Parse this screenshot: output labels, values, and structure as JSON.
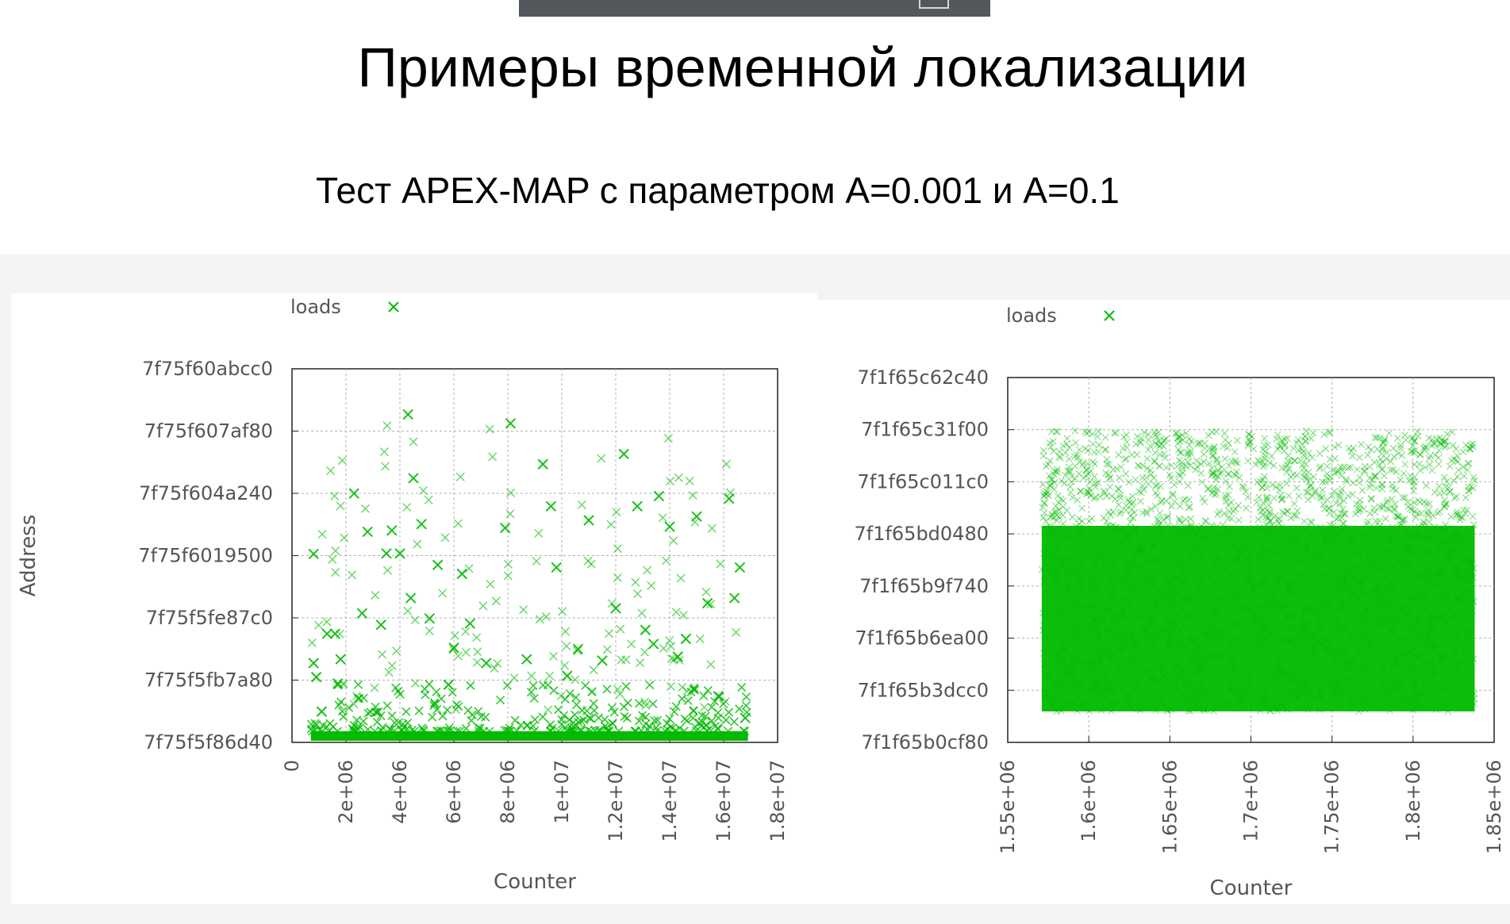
{
  "slide": {
    "title": "Примеры временной локализации",
    "subtitle": "Тест APEX-MAP с параметром A=0.001 и A=0.1"
  },
  "colors": {
    "points": "#00bb00",
    "axis": "#222222",
    "grid": "#b0b0b0",
    "text": "#555555",
    "topbar": "#54575c"
  },
  "chart_data": [
    {
      "type": "scatter",
      "title": "",
      "xlabel": "Counter",
      "ylabel": "Address",
      "legend": {
        "label": "loads",
        "position": "top-left outside"
      },
      "grid": true,
      "x_ticks": [
        "0",
        "2e+06",
        "4e+06",
        "6e+06",
        "8e+06",
        "1e+07",
        "1.2e+07",
        "1.4e+07",
        "1.6e+07",
        "1.8e+07"
      ],
      "y_ticks": [
        "7f75f5f86d40",
        "7f75f5fb7a80",
        "7f75f5fe87c0",
        "7f75f6019500",
        "7f75f604a240",
        "7f75f607af80",
        "7f75f60abcc0"
      ],
      "xlim": [
        0,
        18000000
      ],
      "ylim": [
        "7f75f5f86d40",
        "7f75f60abcc0"
      ],
      "series": [
        {
          "name": "loads",
          "marker": "x",
          "points": [
            [
              800000,
              "7f75f601a9c0"
            ],
            [
              800000,
              "7f75f5fc5000"
            ],
            [
              900000,
              "7f75f5fba000"
            ],
            [
              1100000,
              "7f75f5f9f000"
            ],
            [
              1300000,
              "7f75f5fdc000"
            ],
            [
              1600000,
              "7f75f5fdc000"
            ],
            [
              1800000,
              "7f75f5fc8000"
            ],
            [
              1700000,
              "7f75f5fb5000"
            ],
            [
              2300000,
              "7f75f604a000"
            ],
            [
              2600000,
              "7f75f5fec000"
            ],
            [
              2800000,
              "7f75f602c000"
            ],
            [
              3300000,
              "7f75f5fe3000"
            ],
            [
              3500000,
              "7f75f601b000"
            ],
            [
              3700000,
              "7f75f602d000"
            ],
            [
              4000000,
              "7f75f601b000"
            ],
            [
              4300000,
              "7f75f6088000"
            ],
            [
              4400000,
              "7f75f5ff8000"
            ],
            [
              4500000,
              "7f75f6056000"
            ],
            [
              4800000,
              "7f75f6032000"
            ],
            [
              5100000,
              "7f75f5fe8000"
            ],
            [
              5400000,
              "7f75f6012000"
            ],
            [
              5800000,
              "7f75f5fb4000"
            ],
            [
              6000000,
              "7f75f5fd1000"
            ],
            [
              6300000,
              "7f75f600b000"
            ],
            [
              6600000,
              "7f75f5fe4000"
            ],
            [
              7200000,
              "7f75f5fc5000"
            ],
            [
              7900000,
              "7f75f602f000"
            ],
            [
              8100000,
              "7f75f6081000"
            ],
            [
              8700000,
              "7f75f5fc8000"
            ],
            [
              9300000,
              "7f75f6061000"
            ],
            [
              9600000,
              "7f75f6040000"
            ],
            [
              9800000,
              "7f75f6010000"
            ],
            [
              10200000,
              "7f75f5fbb000"
            ],
            [
              10600000,
              "7f75f5fd0000"
            ],
            [
              11000000,
              "7f75f6035000"
            ],
            [
              11500000,
              "7f75f5fc7000"
            ],
            [
              12000000,
              "7f75f5ff0000"
            ],
            [
              12300000,
              "7f75f6069000"
            ],
            [
              12800000,
              "7f75f6040000"
            ],
            [
              13100000,
              "7f75f5fdf000"
            ],
            [
              13400000,
              "7f75f5fd4000"
            ],
            [
              13600000,
              "7f75f6048000"
            ],
            [
              14000000,
              "7f75f6030000"
            ],
            [
              14300000,
              "7f75f5fca000"
            ],
            [
              14600000,
              "7f75f5fd8000"
            ],
            [
              15000000,
              "7f75f6038000"
            ],
            [
              15400000,
              "7f75f5ff4000"
            ],
            [
              15800000,
              "7f75f5fab000"
            ],
            [
              16200000,
              "7f75f6046000"
            ],
            [
              16600000,
              "7f75f6010000"
            ],
            [
              16400000,
              "7f75f5ff8000"
            ],
            [
              16800000,
              "7f75f5f9a000"
            ]
          ],
          "dense_band": {
            "x_range": [
              700000,
              16900000
            ],
            "y_range": [
              "7f75f5f86d40",
              "7f75f5f95000"
            ]
          }
        }
      ]
    },
    {
      "type": "scatter",
      "title": "",
      "xlabel": "Counter",
      "ylabel": "",
      "legend": {
        "label": "loads",
        "position": "top-left outside"
      },
      "grid": true,
      "x_ticks": [
        "1.55e+06",
        "1.6e+06",
        "1.65e+06",
        "1.7e+06",
        "1.75e+06",
        "1.8e+06",
        "1.85e+06"
      ],
      "y_ticks": [
        "7f1f65b0cf80",
        "7f1f65b3dcc0",
        "7f1f65b6ea00",
        "7f1f65b9f740",
        "7f1f65bd0480",
        "7f1f65c011c0",
        "7f1f65c31f00",
        "7f1f65c62c40"
      ],
      "xlim": [
        1550000,
        1850000
      ],
      "ylim": [
        "7f1f65b0cf80",
        "7f1f65c62c40"
      ],
      "series": [
        {
          "name": "loads",
          "marker": "x",
          "dense_region": {
            "x_range": [
              1571000,
              1838000
            ],
            "y_range": [
              "7f1f65b2a000",
              "7f1f65c31000"
            ],
            "density": "uniform, solid toward bottom"
          }
        }
      ]
    }
  ]
}
